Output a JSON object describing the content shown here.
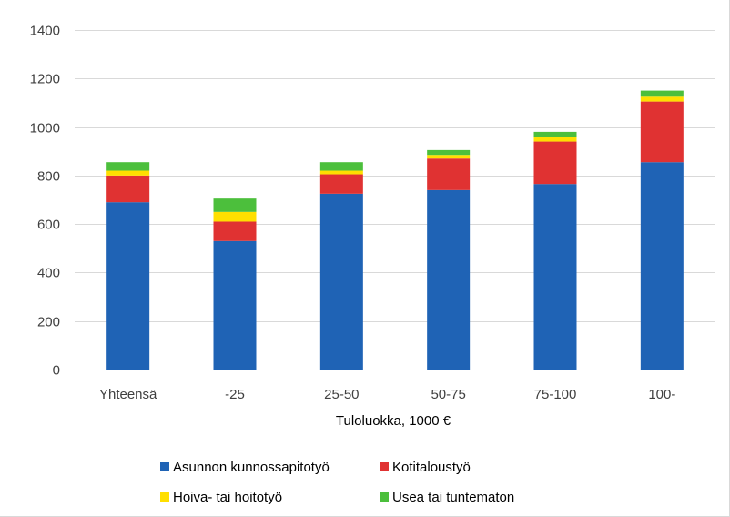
{
  "chart_data": {
    "type": "bar",
    "stacked": true,
    "title": "",
    "xlabel": "Tuloluokka, 1000 €",
    "ylabel": "",
    "ylim": [
      0,
      1400
    ],
    "yticks": [
      0,
      200,
      400,
      600,
      800,
      1000,
      1200,
      1400
    ],
    "grid": true,
    "legend_position": "bottom",
    "categories": [
      "Yhteensä",
      "-25",
      "25-50",
      "50-75",
      "75-100",
      "100-"
    ],
    "series": [
      {
        "name": "Asunnon kunnossapitotyö",
        "color": "#1f63b5",
        "values": [
          690,
          530,
          725,
          740,
          765,
          855
        ]
      },
      {
        "name": "Kotitaloustyö",
        "color": "#e03232",
        "values": [
          110,
          80,
          80,
          130,
          175,
          250
        ]
      },
      {
        "name": "Hoiva- tai hoitotyö",
        "color": "#ffdf00",
        "values": [
          20,
          40,
          15,
          15,
          20,
          20
        ]
      },
      {
        "name": "Usea  tai tuntematon",
        "color": "#4cbf3c",
        "values": [
          35,
          55,
          35,
          20,
          20,
          25
        ]
      }
    ]
  }
}
